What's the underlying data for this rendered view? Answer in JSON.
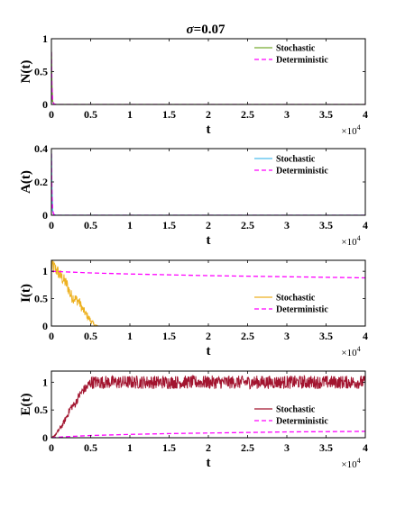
{
  "figure": {
    "title_symbol": "σ",
    "title_value": "=0.07"
  },
  "chart_data": [
    {
      "type": "line",
      "title": "σ=0.07",
      "xlabel": "t",
      "ylabel": "N(t)",
      "x_multiplier_base": "×10",
      "x_multiplier_exp": "4",
      "xlim": [
        0,
        40000
      ],
      "ylim": [
        0,
        1
      ],
      "xticks": [
        0,
        5000,
        10000,
        15000,
        20000,
        25000,
        30000,
        35000,
        40000
      ],
      "xtick_labels": [
        "0",
        "0.5",
        "1",
        "1.5",
        "2",
        "2.5",
        "3",
        "3.5",
        "4"
      ],
      "yticks": [
        0,
        0.5,
        1
      ],
      "ytick_labels": [
        "0",
        "0.5",
        "1"
      ],
      "legend_position": "top-right",
      "series": [
        {
          "name": "Stochastic",
          "color": "#77AC30",
          "style": "solid",
          "x": [
            0,
            60,
            150,
            300,
            600,
            1200,
            40000
          ],
          "y": [
            0.8,
            0.3,
            0.05,
            0.01,
            0,
            0,
            0
          ]
        },
        {
          "name": "Deterministic",
          "color": "#FF00FF",
          "style": "dashed",
          "x": [
            0,
            60,
            150,
            300,
            600,
            1200,
            40000
          ],
          "y": [
            0.8,
            0.3,
            0.05,
            0.01,
            0,
            0,
            0
          ]
        }
      ]
    },
    {
      "type": "line",
      "xlabel": "t",
      "ylabel": "A(t)",
      "x_multiplier_base": "×10",
      "x_multiplier_exp": "4",
      "xlim": [
        0,
        40000
      ],
      "ylim": [
        0,
        0.4
      ],
      "xticks": [
        0,
        5000,
        10000,
        15000,
        20000,
        25000,
        30000,
        35000,
        40000
      ],
      "xtick_labels": [
        "0",
        "0.5",
        "1",
        "1.5",
        "2",
        "2.5",
        "3",
        "3.5",
        "4"
      ],
      "yticks": [
        0,
        0.2,
        0.4
      ],
      "ytick_labels": [
        "0",
        "0.2",
        "0.4"
      ],
      "legend_position": "top-right",
      "series": [
        {
          "name": "Stochastic",
          "color": "#4DBEEE",
          "style": "solid",
          "x": [
            0,
            60,
            150,
            300,
            600,
            1200,
            40000
          ],
          "y": [
            0.37,
            0.15,
            0.03,
            0.005,
            0,
            0,
            0
          ]
        },
        {
          "name": "Deterministic",
          "color": "#FF00FF",
          "style": "dashed",
          "x": [
            0,
            60,
            150,
            300,
            600,
            1200,
            40000
          ],
          "y": [
            0.37,
            0.15,
            0.03,
            0.005,
            0,
            0,
            0
          ]
        }
      ]
    },
    {
      "type": "line",
      "xlabel": "t",
      "ylabel": "I(t)",
      "x_multiplier_base": "×10",
      "x_multiplier_exp": "4",
      "xlim": [
        0,
        40000
      ],
      "ylim": [
        0,
        1.2
      ],
      "xticks": [
        0,
        5000,
        10000,
        15000,
        20000,
        25000,
        30000,
        35000,
        40000
      ],
      "xtick_labels": [
        "0",
        "0.5",
        "1",
        "1.5",
        "2",
        "2.5",
        "3",
        "3.5",
        "4"
      ],
      "yticks": [
        0,
        0.5,
        1
      ],
      "ytick_labels": [
        "0",
        "0.5",
        "1"
      ],
      "legend_position": "center-right",
      "series": [
        {
          "name": "Stochastic",
          "color": "#EDB120",
          "style": "noisy",
          "x": [
            0,
            500,
            1000,
            1500,
            2000,
            2500,
            3000,
            3500,
            4000,
            4500,
            5000,
            5500,
            6000,
            40000
          ],
          "y": [
            1.1,
            1.05,
            0.95,
            0.85,
            0.75,
            0.55,
            0.5,
            0.45,
            0.3,
            0.2,
            0.1,
            0.02,
            0,
            0
          ],
          "noise_amplitude": [
            0.18,
            0.12,
            0.12,
            0.12,
            0.12,
            0.12,
            0.1,
            0.1,
            0.08,
            0.07,
            0.06,
            0.02,
            0,
            0
          ]
        },
        {
          "name": "Deterministic",
          "color": "#FF00FF",
          "style": "dashed",
          "x": [
            0,
            5000,
            10000,
            15000,
            20000,
            25000,
            30000,
            35000,
            40000
          ],
          "y": [
            1.0,
            0.97,
            0.95,
            0.935,
            0.92,
            0.91,
            0.9,
            0.89,
            0.88
          ]
        }
      ]
    },
    {
      "type": "line",
      "xlabel": "t",
      "ylabel": "E(t)",
      "x_multiplier_base": "×10",
      "x_multiplier_exp": "4",
      "xlim": [
        0,
        40000
      ],
      "ylim": [
        0,
        1.2
      ],
      "xticks": [
        0,
        5000,
        10000,
        15000,
        20000,
        25000,
        30000,
        35000,
        40000
      ],
      "xtick_labels": [
        "0",
        "0.5",
        "1",
        "1.5",
        "2",
        "2.5",
        "3",
        "3.5",
        "4"
      ],
      "yticks": [
        0,
        0.5,
        1
      ],
      "ytick_labels": [
        "0",
        "0.5",
        "1"
      ],
      "legend_position": "center-right",
      "series": [
        {
          "name": "Stochastic",
          "color": "#A2142F",
          "style": "noisy",
          "x": [
            0,
            500,
            1000,
            1500,
            2000,
            2500,
            3000,
            3500,
            4000,
            4500,
            5000,
            6000,
            8000,
            40000
          ],
          "y": [
            0,
            0.05,
            0.15,
            0.25,
            0.4,
            0.55,
            0.6,
            0.75,
            0.85,
            0.9,
            1.0,
            1.0,
            1.0,
            1.0
          ],
          "noise_amplitude": [
            0,
            0.02,
            0.04,
            0.05,
            0.06,
            0.07,
            0.07,
            0.08,
            0.08,
            0.1,
            0.12,
            0.12,
            0.12,
            0.12
          ]
        },
        {
          "name": "Deterministic",
          "color": "#FF00FF",
          "style": "dashed",
          "x": [
            0,
            2000,
            5000,
            10000,
            15000,
            20000,
            25000,
            30000,
            35000,
            40000
          ],
          "y": [
            0,
            0.02,
            0.04,
            0.06,
            0.075,
            0.085,
            0.095,
            0.105,
            0.11,
            0.115
          ]
        }
      ]
    }
  ]
}
